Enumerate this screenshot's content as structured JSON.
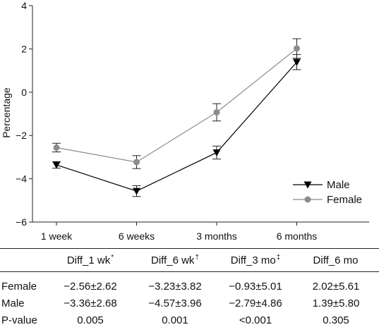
{
  "chart_data": {
    "type": "line",
    "categories": [
      "1 week",
      "6 weeks",
      "3 months",
      "6 months"
    ],
    "ylabel": "Percentage",
    "xlabel": "",
    "ylim": [
      -6,
      4
    ],
    "yticks": [
      -6,
      -4,
      -2,
      0,
      2,
      4
    ],
    "ytick_labels": [
      "−6",
      "−4",
      "−2",
      "0",
      "2",
      "4"
    ],
    "grid": false,
    "legend_position": "bottom-right",
    "series": [
      {
        "name": "Male",
        "marker": "triangle-down",
        "color": "#000000",
        "values": [
          -3.36,
          -4.57,
          -2.79,
          1.39
        ],
        "error": [
          0.15,
          0.25,
          0.3,
          0.35
        ]
      },
      {
        "name": "Female",
        "marker": "circle",
        "color": "#8c8c8c",
        "values": [
          -2.56,
          -3.23,
          -0.93,
          2.02
        ],
        "error": [
          0.2,
          0.3,
          0.4,
          0.45
        ]
      }
    ]
  },
  "table": {
    "headers": [
      {
        "main": "Diff_1 wk",
        "mark": "*"
      },
      {
        "main": "Diff_6 wk",
        "mark": "†"
      },
      {
        "main": "Diff_3 mo",
        "mark": "‡"
      },
      {
        "main": "Diff_6 mo",
        "mark": ""
      }
    ],
    "rows": [
      {
        "label": "Female",
        "cells": [
          "−2.56±2.62",
          "−3.23±3.82",
          "−0.93±5.01",
          "2.02±5.61"
        ]
      },
      {
        "label": "Male",
        "cells": [
          "−3.36±2.68",
          "−4.57±3.96",
          "−2.79±4.86",
          "1.39±5.80"
        ]
      },
      {
        "label": "P-value",
        "cells": [
          "0.005",
          "0.001",
          "<0.001",
          "0.305"
        ]
      }
    ]
  }
}
